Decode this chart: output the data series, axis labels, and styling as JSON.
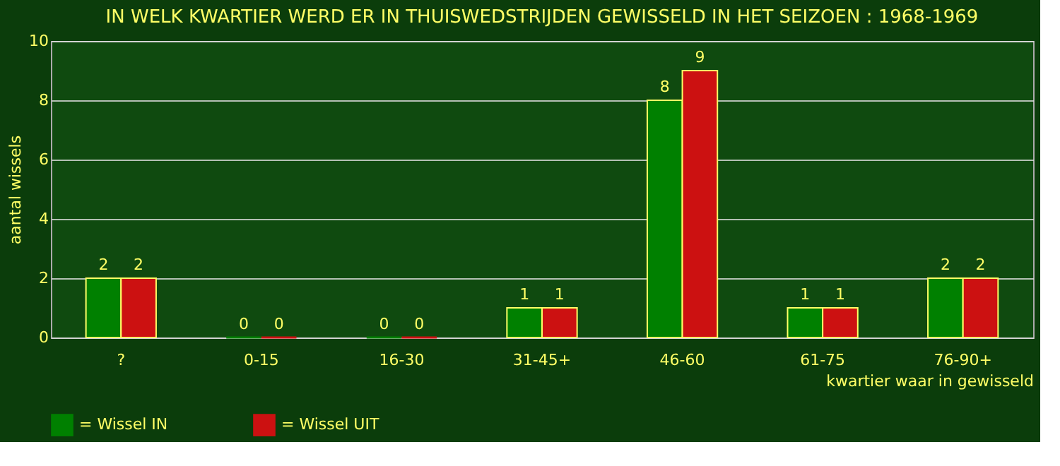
{
  "chart_data": {
    "type": "bar",
    "title": "IN WELK KWARTIER WERD ER IN THUISWEDSTRIJDEN GEWISSELD IN HET SEIZOEN : 1968-1969",
    "xlabel": "kwartier waar in gewisseld",
    "ylabel": "aantal wissels",
    "categories": [
      "?",
      "0-15",
      "16-30",
      "31-45+",
      "46-60",
      "61-75",
      "76-90+"
    ],
    "series": [
      {
        "name": "= Wissel IN",
        "color": "#008000",
        "values": [
          2,
          0,
          0,
          1,
          8,
          1,
          2
        ]
      },
      {
        "name": "= Wissel UIT",
        "color": "#cc1111",
        "values": [
          2,
          0,
          0,
          1,
          9,
          1,
          2
        ]
      }
    ],
    "ylim": [
      0,
      10
    ],
    "yticks": [
      0,
      2,
      4,
      6,
      8,
      10
    ],
    "grid": "y",
    "legend": "bottom",
    "data_labels": true
  }
}
